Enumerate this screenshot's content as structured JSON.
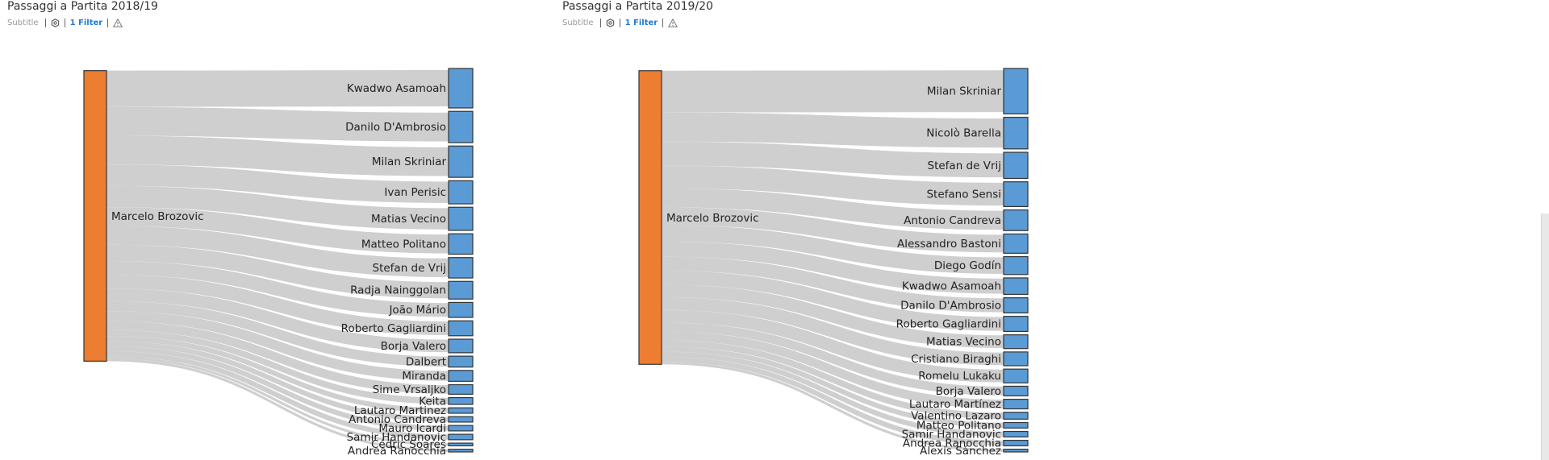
{
  "panels": [
    {
      "title": "Passaggi a Partita 2018/19",
      "subtitle": "Subtitle",
      "filter_label": "1 Filter",
      "icons": [
        "settings-icon",
        "warning-icon"
      ]
    },
    {
      "title": "Passaggi a Partita 2019/20",
      "subtitle": "Subtitle",
      "filter_label": "1 Filter",
      "icons": [
        "settings-icon",
        "warning-icon"
      ]
    }
  ],
  "colors": {
    "source_node": "#ed7d31",
    "target_node": "#5b9bd5",
    "link": "#cccccc",
    "node_border": "#333333",
    "filter_link": "#1f7ad6"
  },
  "chart_data": [
    {
      "type": "sankey",
      "title": "Passaggi a Partita 2018/19",
      "source": "Marcelo Brozovic",
      "targets": [
        "Kwadwo Asamoah",
        "Danilo D'Ambrosio",
        "Milan Skriniar",
        "Ivan Perisic",
        "Matias Vecino",
        "Matteo Politano",
        "Stefan de Vrij",
        "Radja Nainggolan",
        "João Mário",
        "Roberto Gagliardini",
        "Borja Valero",
        "Dalbert",
        "Miranda",
        "Sime Vrsaljko",
        "Keita",
        "Lautaro Martinez",
        "Antonio Candreva",
        "Mauro Icardi",
        "Samir Handanovic",
        "Cédric Soares",
        "Andrea Ranocchia"
      ],
      "values": [
        14.5,
        11.5,
        11.5,
        8.5,
        8.5,
        7.5,
        7.5,
        6.5,
        5.5,
        5.5,
        5,
        4,
        4,
        3.5,
        2.5,
        2,
        2,
        2,
        2,
        1,
        1
      ]
    },
    {
      "type": "sankey",
      "title": "Passaggi a Partita 2019/20",
      "source": "Marcelo Brozovic",
      "targets": [
        "Milan Skriniar",
        "Nicolò Barella",
        "Stefan de Vrij",
        "Stefano Sensi",
        "Antonio Candreva",
        "Alessandro Bastoni",
        "Diego Godín",
        "Kwadwo Asamoah",
        "Danilo D'Ambrosio",
        "Roberto Gagliardini",
        "Matias Vecino",
        "Cristiano Biraghi",
        "Romelu Lukaku",
        "Borja Valero",
        "Lautaro Martínez",
        "Valentino Lazaro",
        "Matteo Politano",
        "Samir Handanovic",
        "Andrea Ranocchia",
        "Alexis Sánchez"
      ],
      "values": [
        16.5,
        11.5,
        9.5,
        9,
        7.5,
        7,
        6.5,
        6,
        5.5,
        5.5,
        5,
        5,
        5,
        3.5,
        3.5,
        2.5,
        2,
        2,
        2,
        1
      ]
    }
  ]
}
